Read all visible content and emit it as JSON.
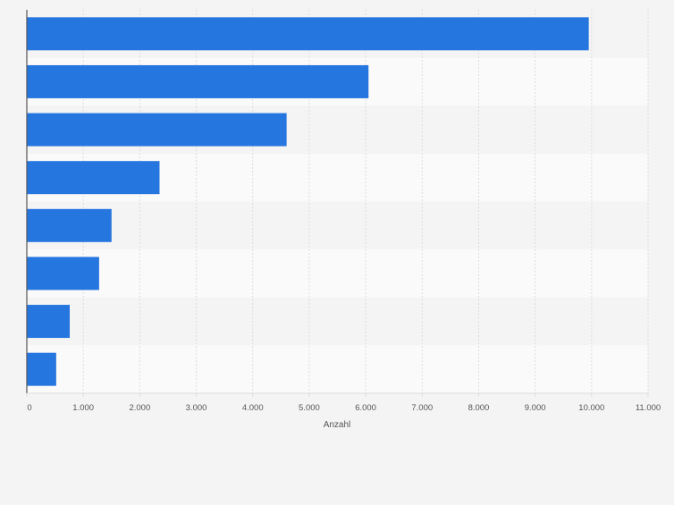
{
  "chart_data": {
    "type": "bar",
    "orientation": "horizontal",
    "categories": [
      "",
      "",
      "",
      "",
      "",
      "",
      "",
      ""
    ],
    "values": [
      9950,
      6050,
      4600,
      2350,
      1500,
      1280,
      760,
      520
    ],
    "title": "",
    "xlabel": "Anzahl",
    "ylabel": "",
    "xlim": [
      0,
      11000
    ],
    "ticks": [
      0,
      1000,
      2000,
      3000,
      4000,
      5000,
      6000,
      7000,
      8000,
      9000,
      10000,
      11000
    ],
    "tick_labels": [
      "0",
      "1.000",
      "2.000",
      "3.000",
      "4.000",
      "5.000",
      "6.000",
      "7.000",
      "8.000",
      "9.000",
      "10.000",
      "11.000"
    ],
    "grid": true,
    "legend": "none",
    "colors": {
      "bar": "#2676e0",
      "background": "#f4f4f4",
      "band_dark": "#f4f4f4",
      "band_light": "#fafafa",
      "grid": "#dcdcdc",
      "axis": "#555555",
      "tick_text": "#555555"
    }
  }
}
